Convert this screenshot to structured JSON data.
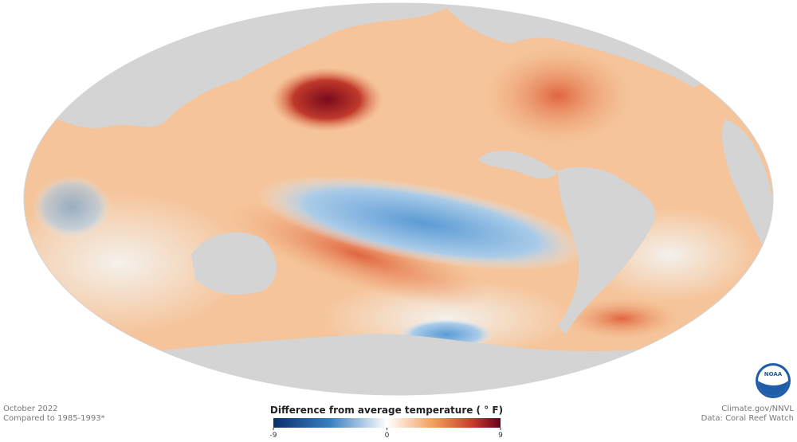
{
  "footer_left": {
    "date": "October 2022",
    "baseline": "Compared to 1985-1993*"
  },
  "footer_right": {
    "source": "Climate.gov/NNVL",
    "data": "Data: Coral Reef Watch"
  },
  "logo": "NOAA",
  "legend": {
    "title": "Difference from average temperature ( ° F)",
    "range": [
      -9,
      9
    ],
    "ticks": [
      -9,
      0,
      9
    ]
  }
}
